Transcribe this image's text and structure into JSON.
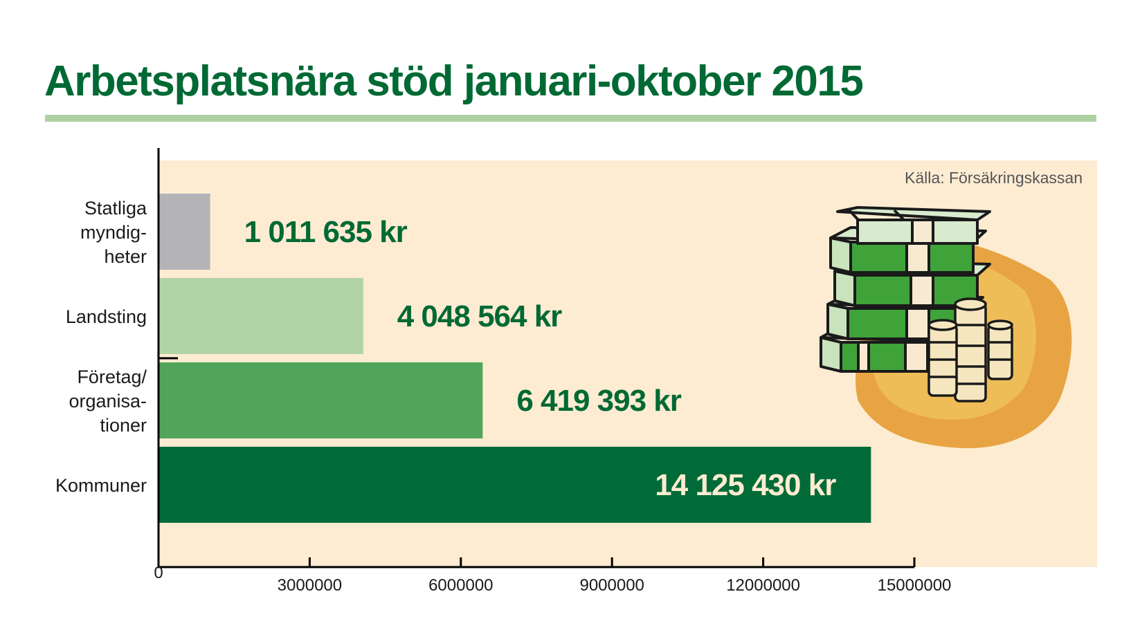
{
  "title": "Arbetsplatsnära stöd januari-oktober 2015",
  "source": "Källa: Försäkringskassan",
  "colors": {
    "title": "#006934",
    "title_rule": "#aed0a2",
    "plot_background": "#fdecd2",
    "value_label": "#006934",
    "value_label_inside": "#fdecd2"
  },
  "illustration": "money-stack-and-coins-icon",
  "chart_data": {
    "type": "bar",
    "orientation": "horizontal",
    "title": "Arbetsplatsnära stöd januari-oktober 2015",
    "xlabel": "",
    "ylabel": "",
    "xlim": [
      0,
      15000000
    ],
    "x_ticks": [
      0,
      3000000,
      6000000,
      9000000,
      12000000,
      15000000
    ],
    "x_tick_labels": [
      "0",
      "3000000",
      "6000000",
      "9000000",
      "12000000",
      "15000000"
    ],
    "grid": false,
    "categories": [
      "Statliga myndig- heter",
      "Landsting",
      "Företag/ organisa- tioner",
      "Kommuner"
    ],
    "category_lines": [
      [
        "Statliga",
        "myndig-",
        "heter"
      ],
      [
        "Landsting"
      ],
      [
        "Företag/",
        "organisa-",
        "tioner"
      ],
      [
        "Kommuner"
      ]
    ],
    "values": [
      1011635,
      4048564,
      6419393,
      14125430
    ],
    "value_labels": [
      "1 011 635 kr",
      "4 048 564 kr",
      "6 419 393 kr",
      "14 125 430 kr"
    ],
    "bar_colors": [
      "#b4b4b6",
      "#b1d4a6",
      "#52a45c",
      "#006b38"
    ]
  }
}
